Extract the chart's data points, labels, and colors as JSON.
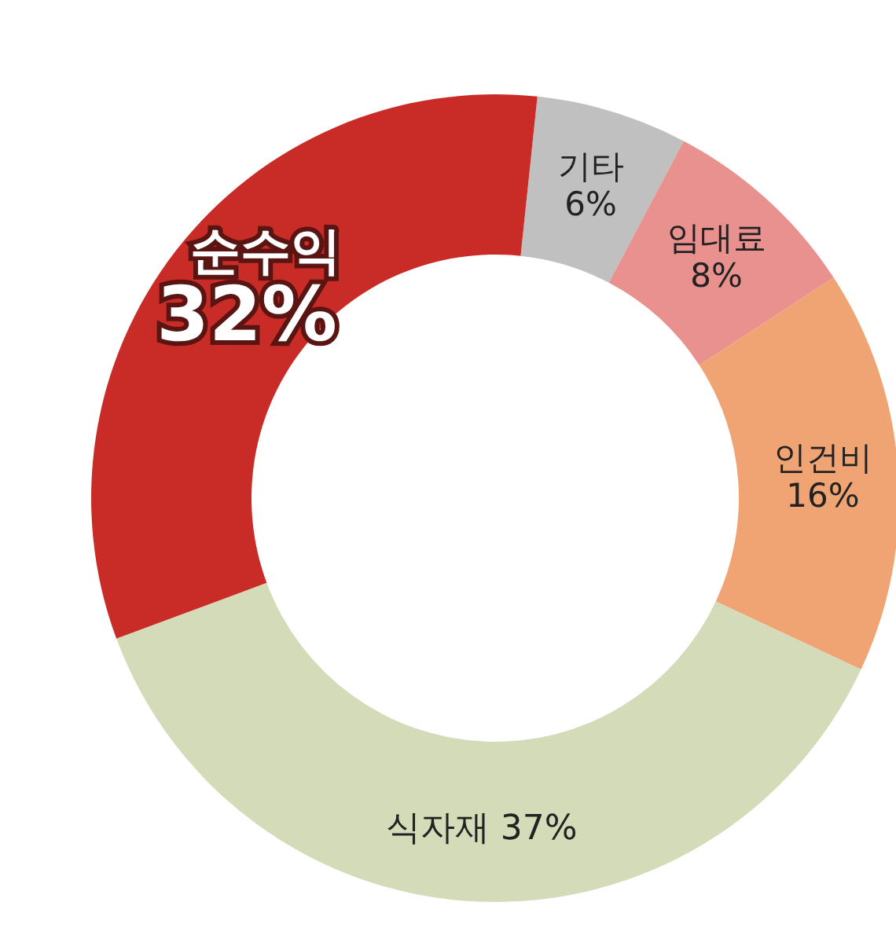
{
  "chart_data": {
    "type": "donut",
    "categories": [
      "기타",
      "임대료",
      "인건비",
      "식자재",
      "순수익"
    ],
    "values": [
      6,
      8,
      16,
      37,
      32
    ],
    "colors": [
      "#c0c0c0",
      "#e8918e",
      "#f0a473",
      "#d4dbb8",
      "#c92b27"
    ],
    "value_labels": [
      "6%",
      "8%",
      "16%",
      "37%",
      "32%"
    ]
  }
}
